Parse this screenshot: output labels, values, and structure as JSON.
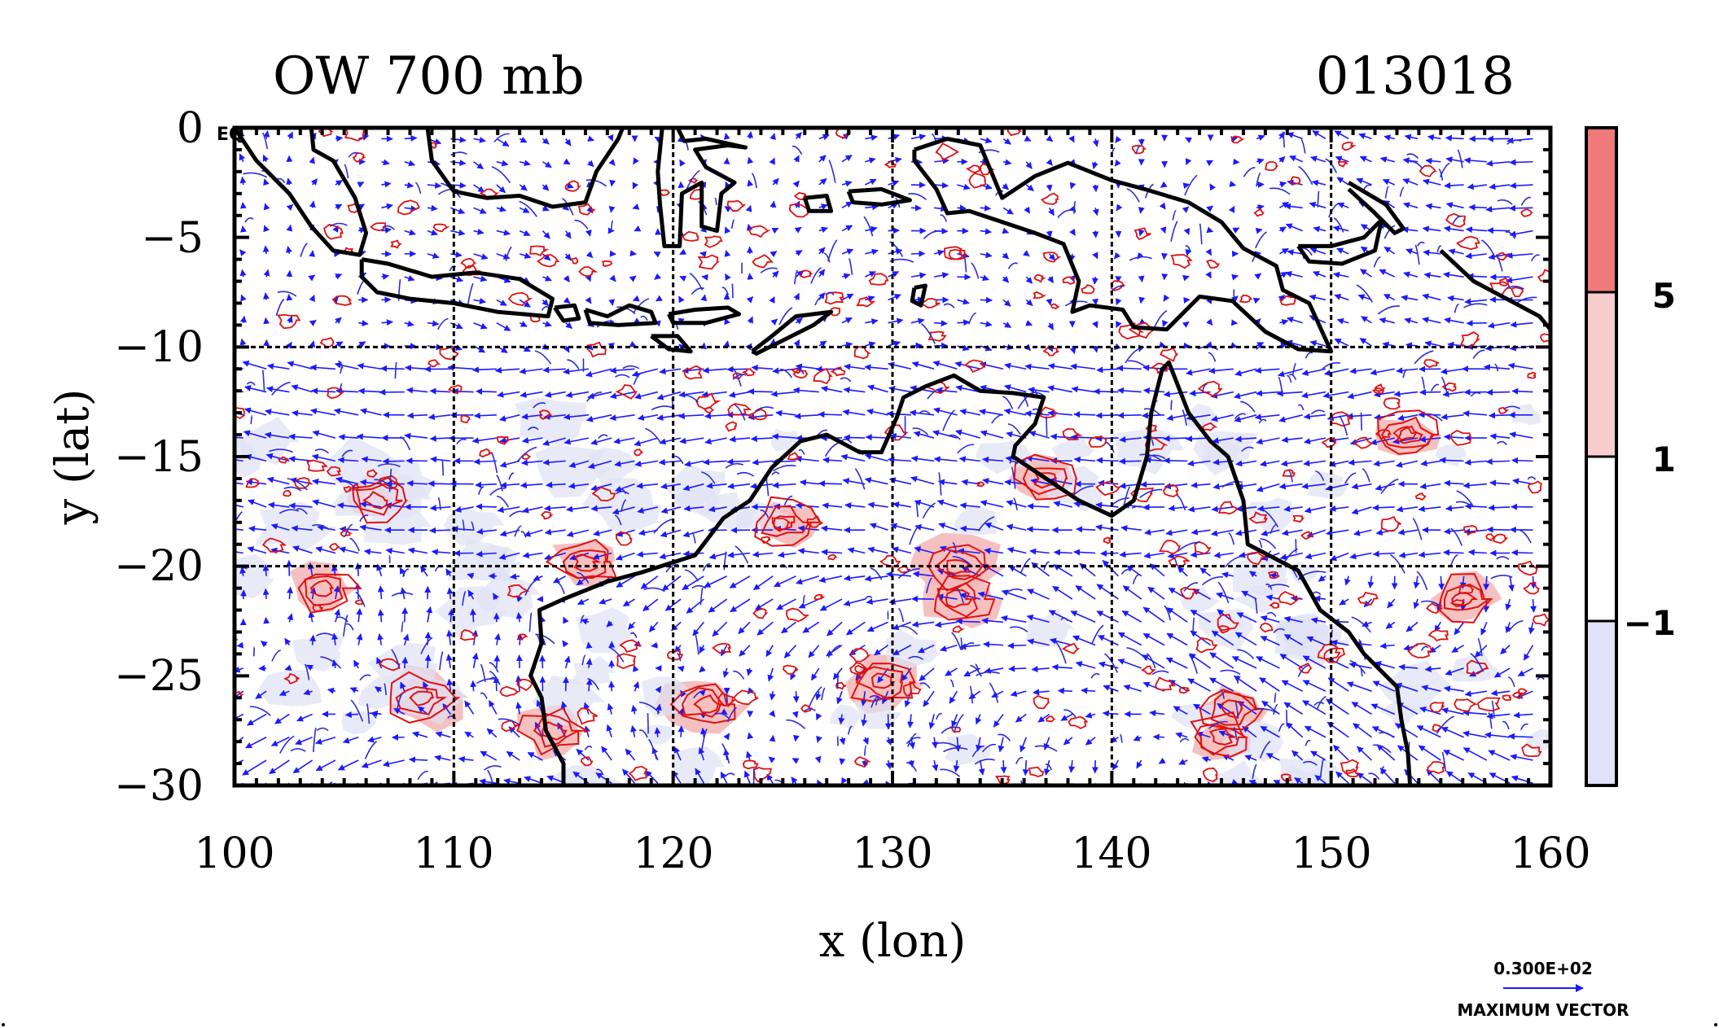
{
  "chart_data": {
    "type": "contour",
    "title": "OW 700 mb",
    "time_label": "013018",
    "xlabel": "x (lon)",
    "ylabel": "y (lat)",
    "xlim": [
      100,
      160
    ],
    "ylim": [
      -30,
      0
    ],
    "x_ticks": [
      100,
      110,
      120,
      130,
      140,
      150,
      160
    ],
    "y_ticks": [
      0,
      -5,
      -10,
      -15,
      -20,
      -25,
      -30
    ],
    "x_tick_labels": [
      "100",
      "110",
      "120",
      "130",
      "140",
      "150",
      "160"
    ],
    "y_tick_labels": [
      "0",
      "−5",
      "−10",
      "−15",
      "−20",
      "−25",
      "−30"
    ],
    "corner_label": "EQ",
    "grid": true,
    "grid_x": [
      110,
      120,
      130,
      140,
      150
    ],
    "grid_y": [
      -10,
      -20
    ],
    "colorbar": {
      "levels": [
        -1,
        1,
        5
      ],
      "level_labels": [
        "−1",
        "1",
        "5"
      ],
      "colors": [
        "#e0e2f8",
        "#ffffff",
        "#f8cdcd",
        "#f07a7a"
      ]
    },
    "vector_key": {
      "magnitude_label": "0.300E+02",
      "caption": "MAXIMUM VECTOR"
    },
    "colors": {
      "coast": "#000000",
      "vectors": "#1a1aff",
      "negative_contour": "#2b2bd6",
      "positive_contour": "#e01010",
      "positive_fill": "#f3b5b5",
      "negative_fill": "#dfe1f5"
    },
    "coastlines": [
      {
        "name": "sumatra",
        "points": [
          [
            100,
            0
          ],
          [
            101,
            -1.5
          ],
          [
            102.5,
            -3
          ],
          [
            103.5,
            -4.5
          ],
          [
            104.5,
            -5.6
          ],
          [
            105.7,
            -5.8
          ],
          [
            106,
            -4.8
          ],
          [
            105.5,
            -3.2
          ],
          [
            104.5,
            -1.5
          ],
          [
            103.6,
            -1
          ],
          [
            103.5,
            0
          ]
        ]
      },
      {
        "name": "java",
        "points": [
          [
            105.8,
            -6
          ],
          [
            107,
            -6.2
          ],
          [
            109,
            -6.8
          ],
          [
            111,
            -6.6
          ],
          [
            113,
            -6.9
          ],
          [
            114.5,
            -7.8
          ],
          [
            114.3,
            -8.6
          ],
          [
            112,
            -8.4
          ],
          [
            110,
            -8
          ],
          [
            108,
            -7.8
          ],
          [
            106.5,
            -7.5
          ],
          [
            105.8,
            -6.8
          ],
          [
            105.8,
            -6
          ]
        ]
      },
      {
        "name": "bali",
        "points": [
          [
            114.6,
            -8.2
          ],
          [
            115.5,
            -8.1
          ],
          [
            115.7,
            -8.7
          ],
          [
            115,
            -8.8
          ],
          [
            114.6,
            -8.2
          ]
        ]
      },
      {
        "name": "lombok-sumbawa",
        "points": [
          [
            116,
            -8.3
          ],
          [
            117,
            -8.6
          ],
          [
            118,
            -8.1
          ],
          [
            119,
            -8.4
          ],
          [
            119.2,
            -8.9
          ],
          [
            117.5,
            -9
          ],
          [
            116.2,
            -8.9
          ],
          [
            116,
            -8.3
          ]
        ]
      },
      {
        "name": "flores",
        "points": [
          [
            119.8,
            -8.5
          ],
          [
            121,
            -8.3
          ],
          [
            122.5,
            -8.2
          ],
          [
            123,
            -8.5
          ],
          [
            121.5,
            -8.9
          ],
          [
            120,
            -8.9
          ],
          [
            119.8,
            -8.5
          ]
        ]
      },
      {
        "name": "sumba",
        "points": [
          [
            119,
            -9.5
          ],
          [
            120.2,
            -9.5
          ],
          [
            120.8,
            -10.2
          ],
          [
            119.8,
            -10.1
          ],
          [
            119,
            -9.5
          ]
        ]
      },
      {
        "name": "timor",
        "points": [
          [
            123.6,
            -10.2
          ],
          [
            124.5,
            -9.5
          ],
          [
            125.6,
            -8.6
          ],
          [
            127.2,
            -8.4
          ],
          [
            126.4,
            -9
          ],
          [
            125,
            -9.7
          ],
          [
            123.8,
            -10.3
          ],
          [
            123.6,
            -10.2
          ]
        ]
      },
      {
        "name": "borneo",
        "points": [
          [
            108.8,
            0
          ],
          [
            109,
            -1.5
          ],
          [
            110,
            -2.9
          ],
          [
            111.5,
            -3.2
          ],
          [
            113,
            -3.1
          ],
          [
            114.5,
            -3.6
          ],
          [
            116,
            -3.4
          ],
          [
            116.5,
            -2
          ],
          [
            117.5,
            -0.5
          ],
          [
            117.7,
            0
          ]
        ]
      },
      {
        "name": "sulawesi",
        "points": [
          [
            119.5,
            0
          ],
          [
            119.3,
            -2
          ],
          [
            119.4,
            -3.5
          ],
          [
            119.6,
            -5.4
          ],
          [
            120.3,
            -5.4
          ],
          [
            120.4,
            -3
          ],
          [
            121.3,
            -2.5
          ],
          [
            121.3,
            -4.5
          ],
          [
            122,
            -4.7
          ],
          [
            122.2,
            -3
          ],
          [
            122.8,
            -2.5
          ],
          [
            121.5,
            -1.8
          ],
          [
            121,
            -1
          ],
          [
            122.5,
            -0.8
          ],
          [
            123.3,
            -0.9
          ],
          [
            121.5,
            -0.5
          ],
          [
            120.5,
            -0.6
          ],
          [
            120.2,
            0
          ]
        ]
      },
      {
        "name": "buru",
        "points": [
          [
            126,
            -3.2
          ],
          [
            127,
            -3.1
          ],
          [
            127.2,
            -3.8
          ],
          [
            126.2,
            -3.8
          ],
          [
            126,
            -3.2
          ]
        ]
      },
      {
        "name": "seram",
        "points": [
          [
            128,
            -2.9
          ],
          [
            129.5,
            -2.8
          ],
          [
            130.8,
            -3.3
          ],
          [
            129.5,
            -3.5
          ],
          [
            128.2,
            -3.4
          ],
          [
            128,
            -2.9
          ]
        ]
      },
      {
        "name": "tanimbar",
        "points": [
          [
            131,
            -7.3
          ],
          [
            131.5,
            -7.2
          ],
          [
            131.3,
            -8.1
          ],
          [
            130.9,
            -7.9
          ],
          [
            131,
            -7.3
          ]
        ]
      },
      {
        "name": "new-guinea",
        "points": [
          [
            131,
            -1
          ],
          [
            132.5,
            -0.5
          ],
          [
            134,
            -0.8
          ],
          [
            135,
            -3.2
          ],
          [
            136.5,
            -2.2
          ],
          [
            138,
            -1.6
          ],
          [
            140,
            -2.4
          ],
          [
            141.5,
            -2.8
          ],
          [
            143.5,
            -3.4
          ],
          [
            145,
            -4.3
          ],
          [
            146,
            -5.5
          ],
          [
            147.5,
            -6.3
          ],
          [
            147.8,
            -7.4
          ],
          [
            149,
            -8
          ],
          [
            150,
            -10.2
          ],
          [
            148.5,
            -10.1
          ],
          [
            147,
            -9.3
          ],
          [
            145.5,
            -7.9
          ],
          [
            144,
            -7.7
          ],
          [
            142.5,
            -9.2
          ],
          [
            141,
            -9.1
          ],
          [
            140.5,
            -8.3
          ],
          [
            139,
            -8.1
          ],
          [
            138.2,
            -8.4
          ],
          [
            138.5,
            -7
          ],
          [
            137.8,
            -5.3
          ],
          [
            136.5,
            -4.8
          ],
          [
            135,
            -4.3
          ],
          [
            133.5,
            -3.8
          ],
          [
            132.5,
            -3.9
          ],
          [
            132,
            -2.8
          ],
          [
            131,
            -1.5
          ],
          [
            131,
            -1
          ]
        ]
      },
      {
        "name": "new-britain",
        "points": [
          [
            148.5,
            -5.4
          ],
          [
            150,
            -5.4
          ],
          [
            151.5,
            -5
          ],
          [
            152.3,
            -4.2
          ],
          [
            152,
            -5.6
          ],
          [
            150.5,
            -6.2
          ],
          [
            149,
            -6.1
          ],
          [
            148.5,
            -5.4
          ]
        ]
      },
      {
        "name": "new-ireland",
        "points": [
          [
            150.8,
            -2.5
          ],
          [
            152.5,
            -3.5
          ],
          [
            153.3,
            -4.6
          ],
          [
            152.9,
            -4.8
          ],
          [
            151.9,
            -3.8
          ],
          [
            150.8,
            -2.8
          ]
        ]
      },
      {
        "name": "solomons",
        "points": [
          [
            155,
            -5.6
          ],
          [
            156.5,
            -7
          ],
          [
            158,
            -7.8
          ],
          [
            159.5,
            -8.6
          ],
          [
            160,
            -9.2
          ]
        ]
      },
      {
        "name": "australia",
        "points": [
          [
            115,
            -30
          ],
          [
            115,
            -29
          ],
          [
            114.2,
            -27.5
          ],
          [
            114,
            -26
          ],
          [
            113.5,
            -25
          ],
          [
            114,
            -23.5
          ],
          [
            113.9,
            -22
          ],
          [
            115,
            -21.5
          ],
          [
            117,
            -20.7
          ],
          [
            118.5,
            -20.3
          ],
          [
            121,
            -19.5
          ],
          [
            122.3,
            -17.8
          ],
          [
            123.5,
            -17
          ],
          [
            124.5,
            -15.5
          ],
          [
            125.8,
            -14.3
          ],
          [
            127,
            -14
          ],
          [
            128.5,
            -14.8
          ],
          [
            129.5,
            -14.8
          ],
          [
            130.2,
            -13.2
          ],
          [
            130.5,
            -12.3
          ],
          [
            131.5,
            -11.8
          ],
          [
            132.8,
            -11.3
          ],
          [
            134,
            -12
          ],
          [
            135.5,
            -12.1
          ],
          [
            136.9,
            -12.3
          ],
          [
            136.5,
            -13.5
          ],
          [
            135.6,
            -14.5
          ],
          [
            135.5,
            -15
          ],
          [
            137,
            -16
          ],
          [
            138.5,
            -17
          ],
          [
            140,
            -17.7
          ],
          [
            141,
            -17
          ],
          [
            141.6,
            -15
          ],
          [
            141.8,
            -13
          ],
          [
            142.3,
            -11
          ],
          [
            142.6,
            -10.7
          ],
          [
            143.5,
            -13
          ],
          [
            144.5,
            -14.3
          ],
          [
            145.3,
            -15
          ],
          [
            146,
            -17
          ],
          [
            146.2,
            -19
          ],
          [
            148.5,
            -20.2
          ],
          [
            149.5,
            -22
          ],
          [
            150.8,
            -23
          ],
          [
            151.5,
            -24
          ],
          [
            153,
            -25.5
          ],
          [
            153.2,
            -27
          ],
          [
            153.5,
            -28.5
          ],
          [
            153.6,
            -30
          ]
        ]
      }
    ]
  }
}
